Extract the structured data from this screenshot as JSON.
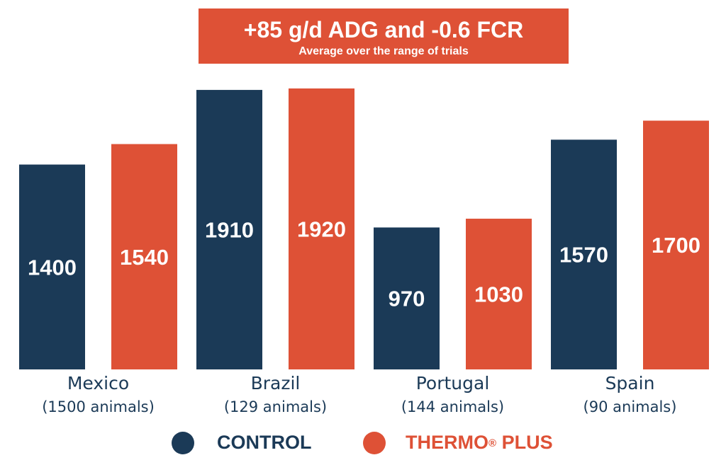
{
  "banner": {
    "title": "+85 g/d ADG and -0.6 FCR",
    "subtitle": "Average over the range of trials"
  },
  "colors": {
    "control": "#1b3a57",
    "thermo": "#de5136"
  },
  "chart_data": {
    "type": "bar",
    "title": "+85 g/d ADG and -0.6 FCR",
    "subtitle": "Average over the range of trials",
    "categories": [
      "Mexico",
      "Brazil",
      "Portugal",
      "Spain"
    ],
    "category_sublabels": [
      "(1500 animals)",
      "(129 animals)",
      "(144 animals)",
      "(90 animals)"
    ],
    "series": [
      {
        "name": "CONTROL",
        "values": [
          1400,
          1910,
          970,
          1570
        ]
      },
      {
        "name": "THERMO® PLUS",
        "values": [
          1540,
          1920,
          1030,
          1700
        ]
      }
    ],
    "ylim": [
      0,
      2000
    ],
    "xlabel": "",
    "ylabel": "",
    "grid": false,
    "legend_position": "bottom"
  },
  "legend": {
    "control_label": "CONTROL",
    "thermo_label_main": "THERMO",
    "thermo_label_mark": "®",
    "thermo_label_rest": " PLUS"
  }
}
